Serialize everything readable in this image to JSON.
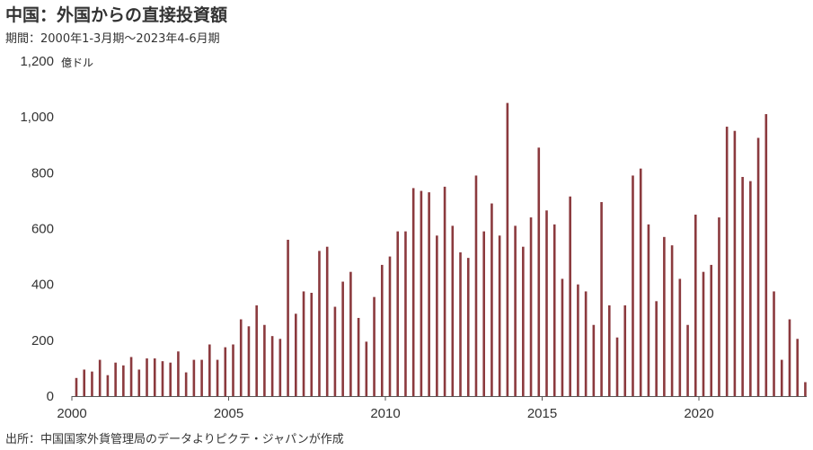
{
  "title": "中国：外国からの直接投資額",
  "subtitle": "期間：2000年1-3月期～2023年4-6月期",
  "source": "出所：中国国家外貨管理局のデータよりピクテ・ジャパンが作成",
  "colors": {
    "bar": "#8b3a3e",
    "axis": "#555555"
  },
  "chart_data": {
    "type": "bar",
    "unit_label": "億ドル",
    "ylim": [
      0,
      1200
    ],
    "yticks": [
      0,
      200,
      400,
      600,
      800,
      1000,
      1200
    ],
    "ytick_labels": [
      "0",
      "200",
      "400",
      "600",
      "800",
      "1,000",
      "1,200"
    ],
    "xticks": [
      "2000",
      "2005",
      "2010",
      "2015",
      "2020"
    ],
    "xlim": [
      2000,
      2023.5
    ],
    "x": [
      2000.0,
      2000.25,
      2000.5,
      2000.75,
      2001.0,
      2001.25,
      2001.5,
      2001.75,
      2002.0,
      2002.25,
      2002.5,
      2002.75,
      2003.0,
      2003.25,
      2003.5,
      2003.75,
      2004.0,
      2004.25,
      2004.5,
      2004.75,
      2005.0,
      2005.25,
      2005.5,
      2005.75,
      2006.0,
      2006.25,
      2006.5,
      2006.75,
      2007.0,
      2007.25,
      2007.5,
      2007.75,
      2008.0,
      2008.25,
      2008.5,
      2008.75,
      2009.0,
      2009.25,
      2009.5,
      2009.75,
      2010.0,
      2010.25,
      2010.5,
      2010.75,
      2011.0,
      2011.25,
      2011.5,
      2011.75,
      2012.0,
      2012.25,
      2012.5,
      2012.75,
      2013.0,
      2013.25,
      2013.5,
      2013.75,
      2014.0,
      2014.25,
      2014.5,
      2014.75,
      2015.0,
      2015.25,
      2015.5,
      2015.75,
      2016.0,
      2016.25,
      2016.5,
      2016.75,
      2017.0,
      2017.25,
      2017.5,
      2017.75,
      2018.0,
      2018.25,
      2018.5,
      2018.75,
      2019.0,
      2019.25,
      2019.5,
      2019.75,
      2020.0,
      2020.25,
      2020.5,
      2020.75,
      2021.0,
      2021.25,
      2021.5,
      2021.75,
      2022.0,
      2022.25,
      2022.5,
      2022.75,
      2023.0,
      2023.25
    ],
    "series": [
      {
        "values": [
          65,
          95,
          88,
          130,
          75,
          120,
          110,
          140,
          95,
          135,
          135,
          125,
          120,
          160,
          85,
          130,
          130,
          185,
          130,
          175,
          185,
          275,
          250,
          325,
          255,
          215,
          205,
          560,
          295,
          375,
          370,
          520,
          535,
          320,
          410,
          445,
          280,
          195,
          355,
          470,
          500,
          590,
          590,
          745,
          735,
          730,
          575,
          750,
          610,
          515,
          495,
          790,
          590,
          690,
          575,
          1050,
          610,
          535,
          640,
          890,
          665,
          615,
          420,
          715,
          400,
          375,
          255,
          695,
          325,
          210,
          325,
          790,
          815,
          615,
          340,
          570,
          540,
          420,
          255,
          650,
          445,
          470,
          640,
          965,
          950,
          785,
          770,
          925,
          1010,
          375,
          130,
          275,
          205,
          50
        ]
      }
    ]
  }
}
